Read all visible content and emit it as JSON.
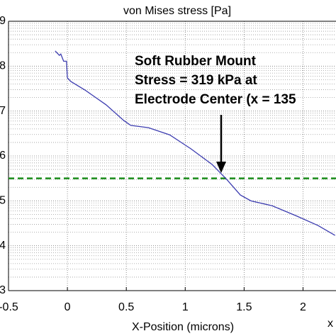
{
  "chart_data": {
    "type": "line",
    "title": "von Mises stress [Pa]",
    "x_label": "X-Position (microns)",
    "x_axis_multiplier": "x",
    "x": [
      -0.104,
      -0.068,
      -0.056,
      -0.032,
      -0.008,
      0,
      0.028,
      0.148,
      0.328,
      0.478,
      0.538,
      0.688,
      0.868,
      1.048,
      1.228,
      1.348,
      1.468,
      1.558,
      1.738,
      1.948,
      2.128,
      2.272
    ],
    "series": [
      {
        "color": "#3c3cb0",
        "values": [
          8.34,
          8.24,
          8.27,
          8.11,
          8.11,
          7.74,
          7.66,
          7.47,
          7.14,
          6.79,
          6.68,
          6.63,
          6.47,
          6.16,
          5.81,
          5.49,
          5.13,
          5.0,
          4.89,
          4.66,
          4.45,
          4.23
        ]
      }
    ],
    "reference_line": {
      "value": 5.5,
      "color": "#1a8c1a"
    },
    "annotation": [
      "Soft Rubber Mount",
      "Stress = 319 kPa at",
      "Electrode Center  (x = 135"
    ],
    "xlim": [
      -0.5,
      2.28
    ],
    "ylim": [
      3,
      9
    ],
    "xticks": [
      -0.5,
      0,
      0.5,
      1,
      1.5,
      2
    ],
    "yticks": [
      3,
      4,
      5,
      6,
      7,
      8,
      9
    ],
    "grid": true,
    "minor_grid": true
  }
}
